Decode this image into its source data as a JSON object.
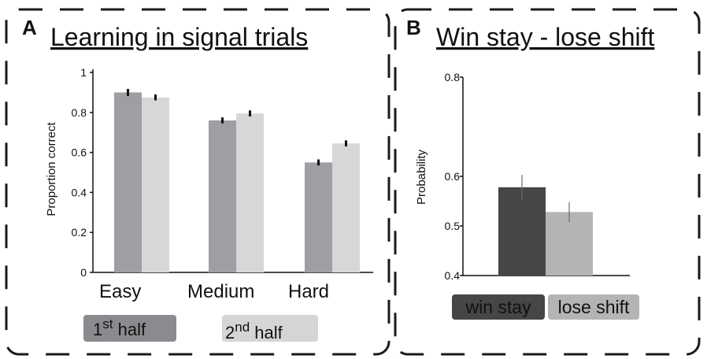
{
  "panels": {
    "a": {
      "letter": "A",
      "title": "Learning in signal trials"
    },
    "b": {
      "letter": "B",
      "title": "Win stay - lose shift"
    }
  },
  "legend": {
    "first_half": {
      "label_main": "1",
      "label_sup": "st",
      "label_rest": " half",
      "color": "#8a8b8e"
    },
    "second_half": {
      "label_main": "2",
      "label_sup": "nd",
      "label_rest": "  half",
      "color": "#d4d5d7"
    }
  },
  "chart_data": [
    {
      "type": "bar",
      "title": "Learning in signal trials",
      "ylabel": "Proportion correct",
      "xlabel": "",
      "categories": [
        "Easy",
        "Medium",
        "Hard"
      ],
      "ylim": [
        0,
        1
      ],
      "yticks": [
        0,
        0.2,
        0.4,
        0.6,
        0.8,
        1
      ],
      "ytick_labels": [
        "0",
        "0.2",
        "0.4",
        "0.6",
        "0.8",
        "1"
      ],
      "series": [
        {
          "name": "1st half",
          "color": "#9e9fa2",
          "values": [
            0.9,
            0.76,
            0.55
          ],
          "errors": [
            0.035,
            0.03,
            0.03
          ]
        },
        {
          "name": "2nd half",
          "color": "#d6d7d9",
          "values": [
            0.875,
            0.795,
            0.645
          ],
          "errors": [
            0.03,
            0.03,
            0.03
          ]
        }
      ],
      "grid": false
    },
    {
      "type": "bar",
      "title": "Win stay - lose shift",
      "ylabel": "Probability",
      "xlabel": "",
      "categories": [
        "win stay",
        "lose shift"
      ],
      "ylim": [
        0.4,
        0.8
      ],
      "yticks": [
        0.4,
        0.5,
        0.6,
        0.8
      ],
      "ytick_labels": [
        "0.4",
        "0.5",
        "0.6",
        "0.8"
      ],
      "values": [
        0.578,
        0.528
      ],
      "errors": [
        0.025,
        0.02
      ],
      "colors": [
        "#454648",
        "#b3b4b6"
      ],
      "grid": false
    }
  ]
}
